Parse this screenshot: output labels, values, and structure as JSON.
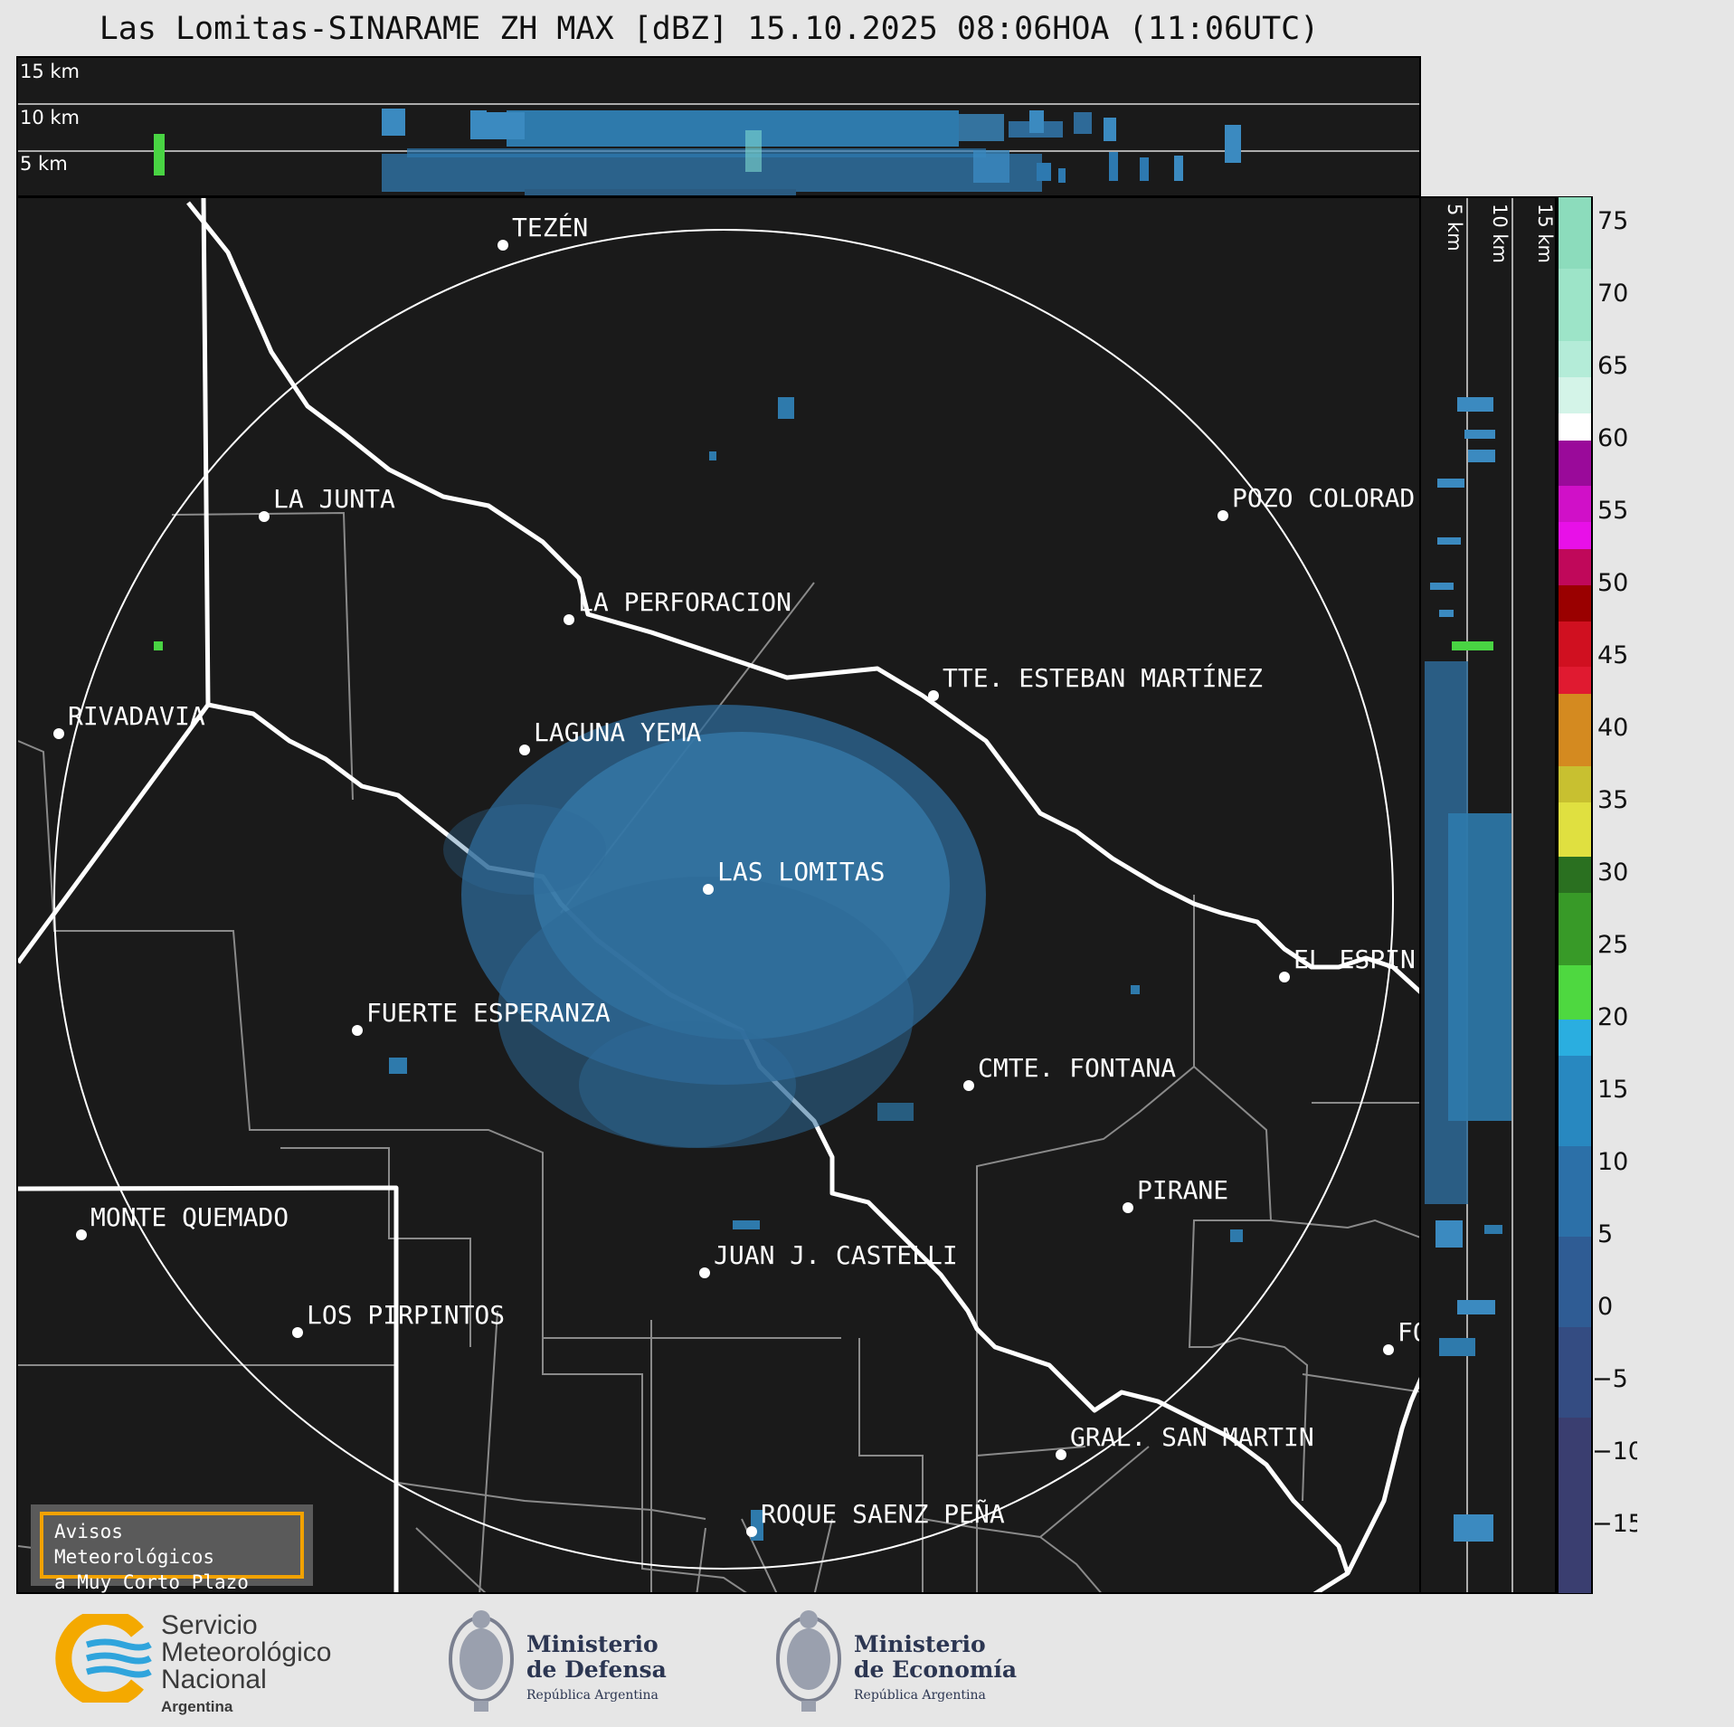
{
  "title": "Las Lomitas-SINARAME ZH MAX [dBZ] 15.10.2025 08:06HOA (11:06UTC)",
  "top_panel": {
    "altitude_labels": [
      "15 km",
      "10 km",
      "5 km"
    ]
  },
  "side_panel": {
    "altitude_labels": [
      "5 km",
      "10 km",
      "15 km"
    ]
  },
  "colorbar": {
    "ticks": [
      "75",
      "70",
      "65",
      "60",
      "55",
      "50",
      "45",
      "40",
      "35",
      "30",
      "25",
      "20",
      "15",
      "10",
      "5",
      "0",
      "−5",
      "−10",
      "−15"
    ]
  },
  "cities": [
    {
      "name": "TEZÉN"
    },
    {
      "name": "LA JUNTA"
    },
    {
      "name": "POZO COLORAD"
    },
    {
      "name": "LA PERFORACION"
    },
    {
      "name": "TTE. ESTEBAN MARTÍNEZ"
    },
    {
      "name": "RIVADAVIA"
    },
    {
      "name": "LAGUNA YEMA"
    },
    {
      "name": "LAS LOMITAS"
    },
    {
      "name": "EL ESPIN"
    },
    {
      "name": "FUERTE ESPERANZA"
    },
    {
      "name": "CMTE. FONTANA"
    },
    {
      "name": "PIRANE"
    },
    {
      "name": "MONTE QUEMADO"
    },
    {
      "name": "JUAN J. CASTELLI"
    },
    {
      "name": "LOS PIRPINTOS"
    },
    {
      "name": "FO"
    },
    {
      "name": "GRAL. SAN MARTIN"
    },
    {
      "name": "ROQUE SAENZ PEÑA"
    }
  ],
  "avisos": {
    "line1": "Avisos Meteorológicos",
    "line2": "a Muy Corto Plazo"
  },
  "logos": {
    "smn": {
      "line1": "Servicio",
      "line2": "Meteorológico",
      "line3": "Nacional",
      "line4": "Argentina"
    },
    "defensa": {
      "line1": "Ministerio",
      "line2": "de Defensa",
      "line3": "República Argentina"
    },
    "economia": {
      "line1": "Ministerio",
      "line2": "de Economía",
      "line3": "República Argentina"
    }
  }
}
